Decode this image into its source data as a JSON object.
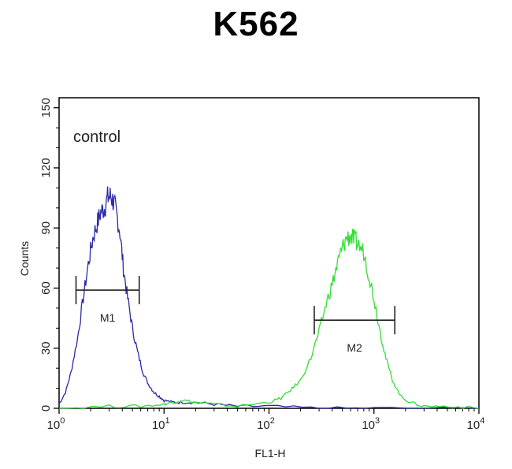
{
  "chart_data": {
    "type": "line",
    "title": "K562",
    "annotation": "control",
    "xlabel": "FL1-H",
    "ylabel": "Counts",
    "xscale": "log",
    "xlim": [
      1,
      10000
    ],
    "ylim": [
      0,
      155
    ],
    "x_ticks": [
      {
        "base": "10",
        "exp": "0"
      },
      {
        "base": "10",
        "exp": "1"
      },
      {
        "base": "10",
        "exp": "2"
      },
      {
        "base": "10",
        "exp": "3"
      },
      {
        "base": "10",
        "exp": "4"
      }
    ],
    "y_ticks": [
      "0",
      "30",
      "60",
      "90",
      "120",
      "150"
    ],
    "y_tick_values": [
      0,
      30,
      60,
      90,
      120,
      150
    ],
    "series": [
      {
        "color": "#2a2aaa",
        "points": [
          [
            1.0,
            2
          ],
          [
            1.15,
            8
          ],
          [
            1.3,
            18
          ],
          [
            1.5,
            35
          ],
          [
            1.7,
            55
          ],
          [
            1.9,
            72
          ],
          [
            2.1,
            85
          ],
          [
            2.3,
            92
          ],
          [
            2.5,
            98
          ],
          [
            2.7,
            100
          ],
          [
            2.9,
            105
          ],
          [
            3.1,
            106
          ],
          [
            3.3,
            103
          ],
          [
            3.5,
            98
          ],
          [
            3.8,
            88
          ],
          [
            4.1,
            70
          ],
          [
            4.5,
            55
          ],
          [
            5.0,
            40
          ],
          [
            5.6,
            28
          ],
          [
            6.3,
            18
          ],
          [
            7.1,
            12
          ],
          [
            8.0,
            8
          ],
          [
            9.0,
            6
          ],
          [
            10.0,
            4
          ],
          [
            12.0,
            3
          ],
          [
            15.0,
            3
          ],
          [
            20.0,
            3
          ],
          [
            30.0,
            2
          ],
          [
            50.0,
            1
          ],
          [
            100,
            1
          ],
          [
            300,
            0
          ],
          [
            1000,
            0
          ],
          [
            10000,
            0
          ]
        ]
      },
      {
        "color": "#33dd33",
        "points": [
          [
            1.0,
            0
          ],
          [
            3.0,
            1
          ],
          [
            6.0,
            1
          ],
          [
            10.0,
            2
          ],
          [
            12.0,
            3
          ],
          [
            15.0,
            4
          ],
          [
            20.0,
            3
          ],
          [
            30.0,
            2
          ],
          [
            50.0,
            1
          ],
          [
            100,
            3
          ],
          [
            130,
            5
          ],
          [
            160,
            9
          ],
          [
            200,
            14
          ],
          [
            250,
            25
          ],
          [
            300,
            38
          ],
          [
            350,
            52
          ],
          [
            400,
            62
          ],
          [
            450,
            72
          ],
          [
            500,
            80
          ],
          [
            550,
            85
          ],
          [
            600,
            86
          ],
          [
            650,
            84
          ],
          [
            700,
            82
          ],
          [
            800,
            78
          ],
          [
            900,
            66
          ],
          [
            1000,
            55
          ],
          [
            1150,
            38
          ],
          [
            1300,
            25
          ],
          [
            1500,
            14
          ],
          [
            1800,
            6
          ],
          [
            2200,
            3
          ],
          [
            3000,
            1
          ],
          [
            5000,
            1
          ],
          [
            10000,
            0
          ]
        ]
      }
    ],
    "markers": [
      {
        "label": "M1",
        "x_start": 1.45,
        "x_end": 5.8,
        "y": 59
      },
      {
        "label": "M2",
        "x_start": 270,
        "x_end": 1580,
        "y": 44
      }
    ]
  }
}
